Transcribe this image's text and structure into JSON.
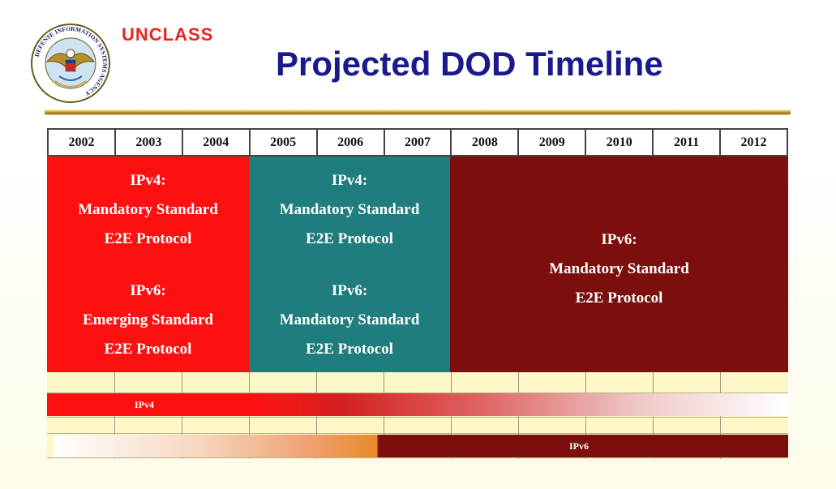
{
  "header": {
    "classification": "UNCLASS",
    "title": "Projected DOD Timeline"
  },
  "logo": {
    "ring_text": "DEFENSE INFORMATION SYSTEMS AGENCY",
    "icon": "disa-seal-icon"
  },
  "timeline": {
    "years": [
      "2002",
      "2003",
      "2004",
      "2005",
      "2006",
      "2007",
      "2008",
      "2009",
      "2010",
      "2011",
      "2012"
    ],
    "blocks": [
      {
        "color": "#ff1010",
        "years": "2002-2004",
        "ipv4_label": "IPv4:",
        "ipv4_status": "Mandatory Standard",
        "ipv4_protocol": "E2E Protocol",
        "ipv6_label": "IPv6:",
        "ipv6_status": "Emerging Standard",
        "ipv6_protocol": "E2E Protocol"
      },
      {
        "color": "#1f7d7d",
        "years": "2005-2007",
        "ipv4_label": "IPv4:",
        "ipv4_status": "Mandatory Standard",
        "ipv4_protocol": "E2E Protocol",
        "ipv6_label": "IPv6:",
        "ipv6_status": "Mandatory Standard",
        "ipv6_protocol": "E2E Protocol"
      },
      {
        "color": "#7d0e0e",
        "years": "2008-2012",
        "ipv6_label": "IPv6:",
        "ipv6_status": "Mandatory Standard",
        "ipv6_protocol": "E2E Protocol"
      }
    ],
    "bars": {
      "ipv4": "IPv4",
      "ipv6": "IPv6"
    }
  },
  "colors": {
    "title": "#1a1a8c",
    "classification": "#e8261c",
    "grid_background": "#fdf7c8"
  }
}
